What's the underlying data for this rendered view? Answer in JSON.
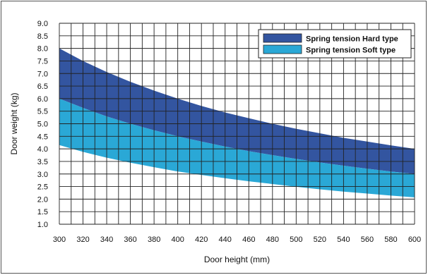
{
  "chart_data": {
    "type": "area",
    "xlabel": "Door height (mm)",
    "ylabel": "Door weight (kg)",
    "xlim": [
      300,
      600
    ],
    "ylim": [
      1.0,
      9.0
    ],
    "x_ticks": [
      300,
      320,
      340,
      360,
      380,
      400,
      420,
      440,
      460,
      480,
      500,
      520,
      540,
      560,
      580,
      600
    ],
    "y_ticks": [
      "1.0",
      "1.5",
      "2.0",
      "2.5",
      "3.0",
      "3.5",
      "4.0",
      "4.5",
      "5.0",
      "5.5",
      "6.0",
      "6.5",
      "7.0",
      "7.5",
      "8.0",
      "8.5",
      "9.0"
    ],
    "grid": true,
    "legend_position": "top-right",
    "series": [
      {
        "name": "Spring tension Hard type",
        "color": "#3355a0",
        "x": [
          300,
          320,
          340,
          360,
          380,
          400,
          420,
          440,
          460,
          480,
          500,
          520,
          540,
          560,
          580,
          600
        ],
        "upper": [
          8.0,
          7.5,
          7.06,
          6.67,
          6.32,
          6.0,
          5.71,
          5.45,
          5.22,
          5.0,
          4.8,
          4.62,
          4.44,
          4.29,
          4.14,
          4.0
        ],
        "lower": [
          6.0,
          5.63,
          5.29,
          5.0,
          4.74,
          4.5,
          4.29,
          4.09,
          3.91,
          3.75,
          3.6,
          3.46,
          3.33,
          3.21,
          3.1,
          3.0
        ]
      },
      {
        "name": "Spring tension Soft type",
        "color": "#2aa8d6",
        "x": [
          300,
          320,
          340,
          360,
          380,
          400,
          420,
          440,
          460,
          480,
          500,
          520,
          540,
          560,
          580,
          600
        ],
        "upper": [
          6.0,
          5.63,
          5.29,
          5.0,
          4.74,
          4.5,
          4.29,
          4.09,
          3.91,
          3.75,
          3.6,
          3.46,
          3.33,
          3.21,
          3.1,
          3.0
        ],
        "lower": [
          4.15,
          3.88,
          3.65,
          3.45,
          3.27,
          3.1,
          2.96,
          2.83,
          2.71,
          2.6,
          2.49,
          2.39,
          2.3,
          2.22,
          2.14,
          2.07
        ]
      }
    ]
  }
}
